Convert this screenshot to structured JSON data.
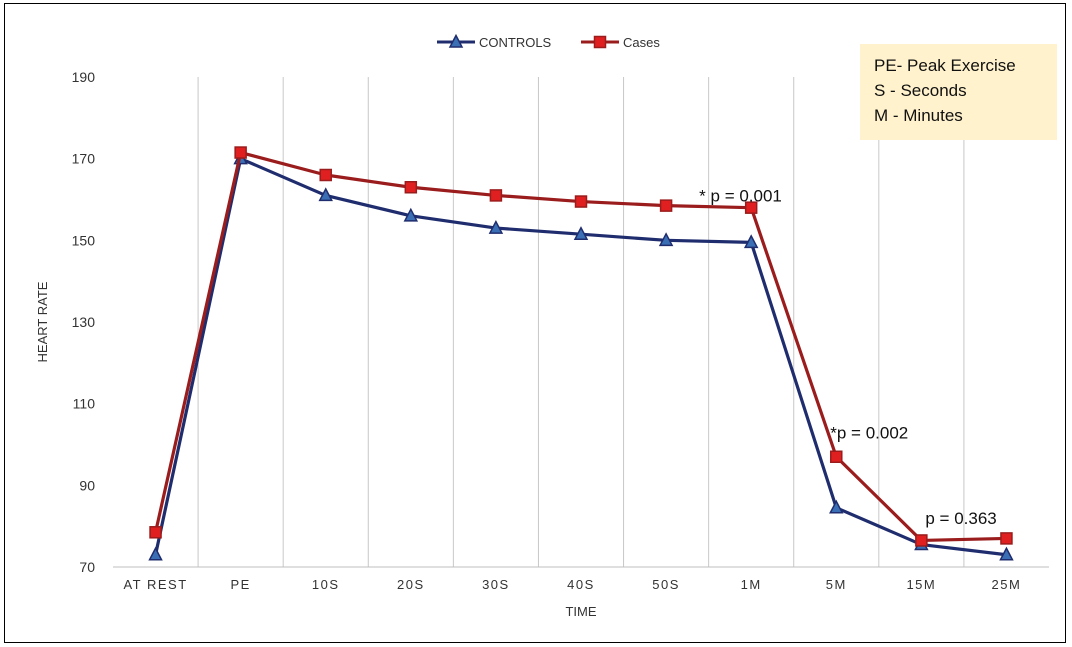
{
  "chart_data": {
    "type": "line",
    "title": "",
    "xlabel": "TIME",
    "ylabel": "HEART RATE",
    "ylim": [
      70,
      190
    ],
    "yticks": [
      70,
      90,
      110,
      130,
      150,
      170,
      190
    ],
    "categories": [
      "AT REST",
      "PE",
      "10S",
      "20S",
      "30S",
      "40S",
      "50S",
      "1M",
      "5M",
      "15M",
      "25M"
    ],
    "vertical_grid": true,
    "horizontal_grid": false,
    "legend_position": "top",
    "series": [
      {
        "name": "CONTROLS",
        "color": "#1f2d6e",
        "marker": "triangle",
        "values": [
          73,
          170,
          161,
          156,
          153,
          151.5,
          150,
          149.5,
          84.5,
          75.5,
          73
        ]
      },
      {
        "name": "Cases",
        "color": "#9b1c1c",
        "marker": "square",
        "values": [
          78.5,
          171.5,
          166,
          163,
          161,
          159.5,
          158.5,
          158,
          97,
          76.5,
          77
        ]
      }
    ],
    "annotations": [
      {
        "text": "* p = 0.001",
        "category": "1M",
        "y": 161
      },
      {
        "text": "*p = 0.002",
        "category": "5M",
        "y": 103
      },
      {
        "text": "p = 0.363",
        "category": "15M",
        "y": 82
      }
    ],
    "note_box": {
      "lines": [
        "PE- Peak Exercise",
        "S - Seconds",
        "M - Minutes"
      ],
      "background": "#fff2cc"
    }
  }
}
